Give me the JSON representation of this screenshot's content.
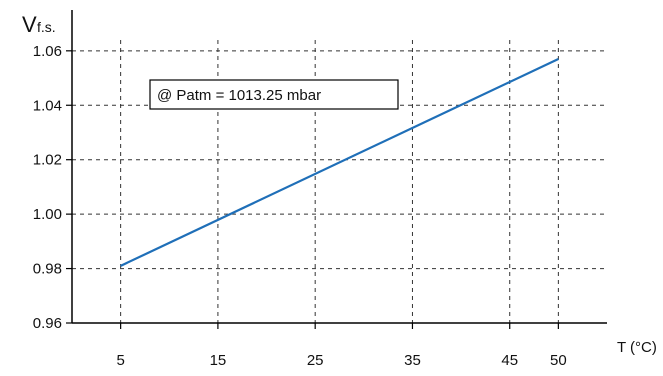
{
  "chart_data": {
    "type": "line",
    "title": "",
    "ylabel_main": "V",
    "ylabel_sub": "f.s.",
    "xlabel": "T (°C)",
    "xlim": [
      0,
      55
    ],
    "ylim": [
      0.96,
      1.075
    ],
    "x_ticks": [
      5,
      15,
      25,
      35,
      45,
      50
    ],
    "y_ticks": [
      0.96,
      0.98,
      1.0,
      1.02,
      1.04,
      1.06
    ],
    "y_tick_labels": [
      "0.96",
      "0.98",
      "1.00",
      "1.02",
      "1.04",
      "1.06"
    ],
    "grid": true,
    "series": [
      {
        "color": "#1f6fb8",
        "x": [
          5,
          50
        ],
        "y": [
          0.981,
          1.057
        ]
      }
    ],
    "annotation": "@ Patm = 1013.25 mbar"
  }
}
